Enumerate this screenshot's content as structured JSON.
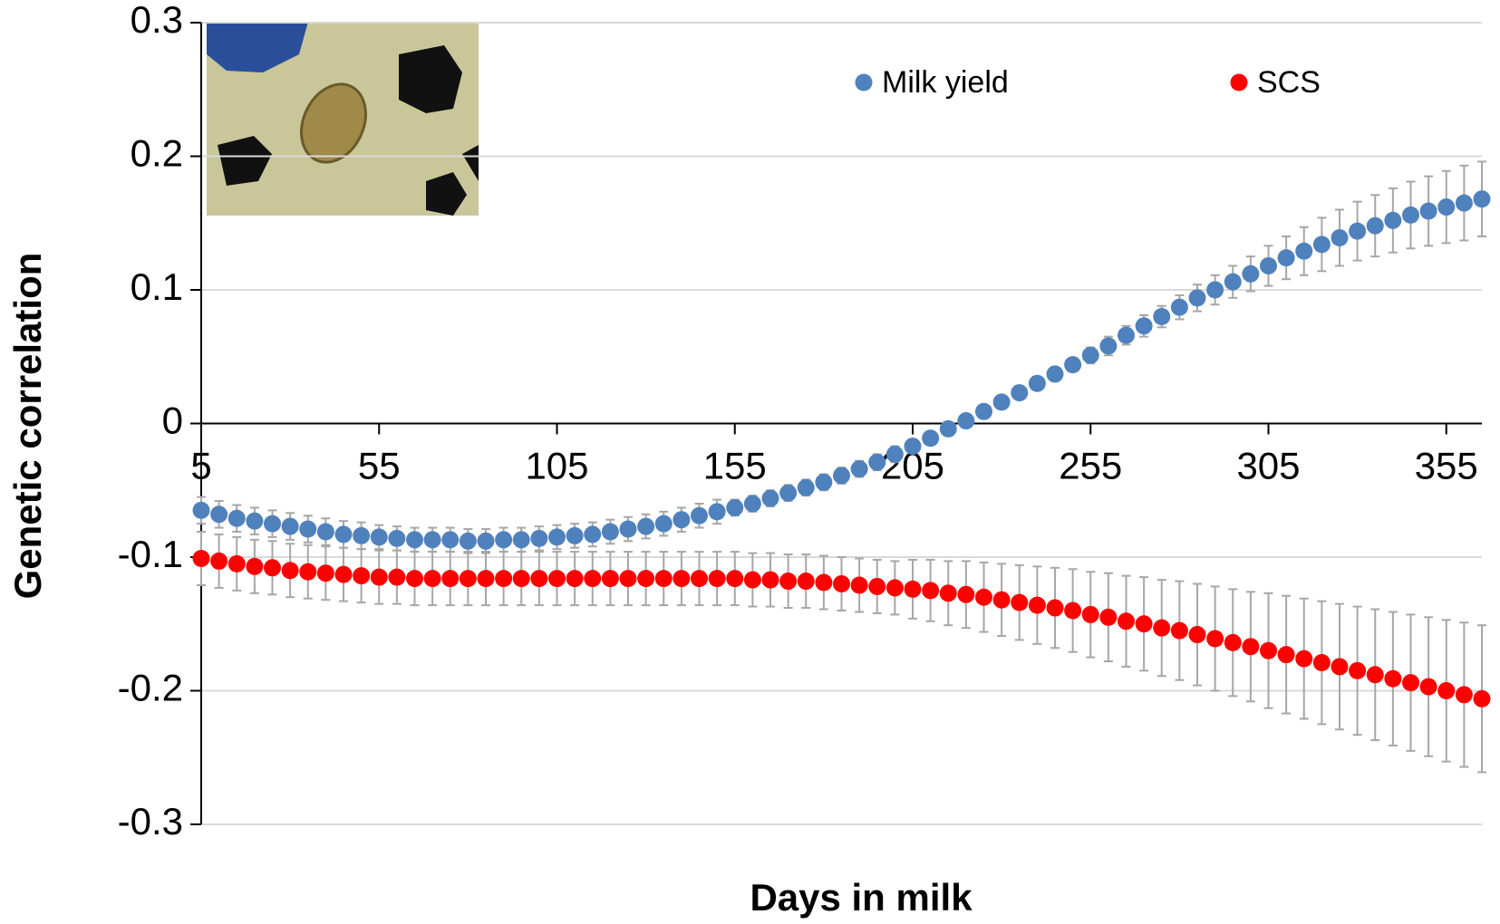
{
  "chart_data": {
    "type": "scatter",
    "x_label": "Days in milk",
    "y_label": "Genetic correlation",
    "x": [
      5,
      10,
      15,
      20,
      25,
      30,
      35,
      40,
      45,
      50,
      55,
      60,
      65,
      70,
      75,
      80,
      85,
      90,
      95,
      100,
      105,
      110,
      115,
      120,
      125,
      130,
      135,
      140,
      145,
      150,
      155,
      160,
      165,
      170,
      175,
      180,
      185,
      190,
      195,
      200,
      205,
      210,
      215,
      220,
      225,
      230,
      235,
      240,
      245,
      250,
      255,
      260,
      265,
      270,
      275,
      280,
      285,
      290,
      295,
      300,
      305,
      310,
      315,
      320,
      325,
      330,
      335,
      340,
      345,
      350,
      355,
      360,
      365
    ],
    "series": [
      {
        "name": "Milk yield",
        "color": "#4f81bd",
        "values": [
          -0.065,
          -0.068,
          -0.071,
          -0.073,
          -0.075,
          -0.077,
          -0.079,
          -0.081,
          -0.083,
          -0.084,
          -0.085,
          -0.086,
          -0.087,
          -0.087,
          -0.087,
          -0.088,
          -0.088,
          -0.087,
          -0.087,
          -0.086,
          -0.085,
          -0.084,
          -0.083,
          -0.081,
          -0.079,
          -0.077,
          -0.075,
          -0.072,
          -0.069,
          -0.066,
          -0.063,
          -0.06,
          -0.056,
          -0.052,
          -0.048,
          -0.044,
          -0.039,
          -0.034,
          -0.029,
          -0.023,
          -0.017,
          -0.011,
          -0.004,
          0.002,
          0.009,
          0.016,
          0.023,
          0.03,
          0.037,
          0.044,
          0.051,
          0.058,
          0.066,
          0.073,
          0.08,
          0.087,
          0.094,
          0.1,
          0.106,
          0.112,
          0.118,
          0.124,
          0.129,
          0.134,
          0.139,
          0.144,
          0.148,
          0.152,
          0.156,
          0.159,
          0.162,
          0.165,
          0.168
        ],
        "errors": [
          0.01,
          0.01,
          0.01,
          0.01,
          0.01,
          0.01,
          0.01,
          0.01,
          0.01,
          0.01,
          0.009,
          0.009,
          0.009,
          0.009,
          0.009,
          0.009,
          0.009,
          0.009,
          0.009,
          0.009,
          0.009,
          0.009,
          0.009,
          0.009,
          0.009,
          0.009,
          0.009,
          0.009,
          0.009,
          0.009,
          0.006,
          0.006,
          0.006,
          0.006,
          0.006,
          0.006,
          0.006,
          0.006,
          0.006,
          0.006,
          0.005,
          0.005,
          0.005,
          0.005,
          0.005,
          0.005,
          0.005,
          0.005,
          0.005,
          0.005,
          0.006,
          0.007,
          0.007,
          0.008,
          0.008,
          0.009,
          0.01,
          0.011,
          0.012,
          0.013,
          0.015,
          0.016,
          0.018,
          0.02,
          0.021,
          0.022,
          0.023,
          0.024,
          0.025,
          0.026,
          0.027,
          0.028,
          0.028
        ]
      },
      {
        "name": "SCS",
        "color": "#ff0000",
        "values": [
          -0.101,
          -0.103,
          -0.105,
          -0.107,
          -0.108,
          -0.11,
          -0.111,
          -0.112,
          -0.113,
          -0.114,
          -0.115,
          -0.115,
          -0.116,
          -0.116,
          -0.116,
          -0.116,
          -0.116,
          -0.116,
          -0.116,
          -0.116,
          -0.116,
          -0.116,
          -0.116,
          -0.116,
          -0.116,
          -0.116,
          -0.116,
          -0.116,
          -0.116,
          -0.116,
          -0.116,
          -0.117,
          -0.117,
          -0.118,
          -0.118,
          -0.119,
          -0.12,
          -0.121,
          -0.122,
          -0.123,
          -0.124,
          -0.125,
          -0.127,
          -0.128,
          -0.13,
          -0.132,
          -0.134,
          -0.136,
          -0.138,
          -0.14,
          -0.143,
          -0.145,
          -0.148,
          -0.15,
          -0.153,
          -0.155,
          -0.158,
          -0.161,
          -0.164,
          -0.167,
          -0.17,
          -0.173,
          -0.176,
          -0.179,
          -0.182,
          -0.185,
          -0.188,
          -0.191,
          -0.194,
          -0.197,
          -0.2,
          -0.203,
          -0.206
        ],
        "errors": [
          0.02,
          0.02,
          0.02,
          0.02,
          0.02,
          0.02,
          0.02,
          0.02,
          0.02,
          0.02,
          0.02,
          0.02,
          0.02,
          0.02,
          0.02,
          0.02,
          0.02,
          0.02,
          0.02,
          0.02,
          0.02,
          0.02,
          0.02,
          0.02,
          0.02,
          0.02,
          0.02,
          0.02,
          0.02,
          0.02,
          0.02,
          0.02,
          0.02,
          0.02,
          0.02,
          0.02,
          0.02,
          0.02,
          0.02,
          0.02,
          0.022,
          0.023,
          0.024,
          0.025,
          0.026,
          0.027,
          0.028,
          0.029,
          0.03,
          0.031,
          0.032,
          0.033,
          0.034,
          0.035,
          0.036,
          0.037,
          0.038,
          0.039,
          0.04,
          0.041,
          0.043,
          0.044,
          0.045,
          0.046,
          0.047,
          0.048,
          0.049,
          0.05,
          0.051,
          0.052,
          0.053,
          0.054,
          0.055
        ]
      }
    ],
    "xlim": [
      5,
      365
    ],
    "xticks": [
      5,
      55,
      105,
      155,
      205,
      255,
      305,
      355
    ],
    "ylim": [
      -0.3,
      0.3
    ],
    "yticks": [
      -0.3,
      -0.2,
      -0.1,
      0,
      0.1,
      0.2,
      0.3
    ],
    "grid": true,
    "legend": "top",
    "error_color": "#a6a6a6"
  }
}
